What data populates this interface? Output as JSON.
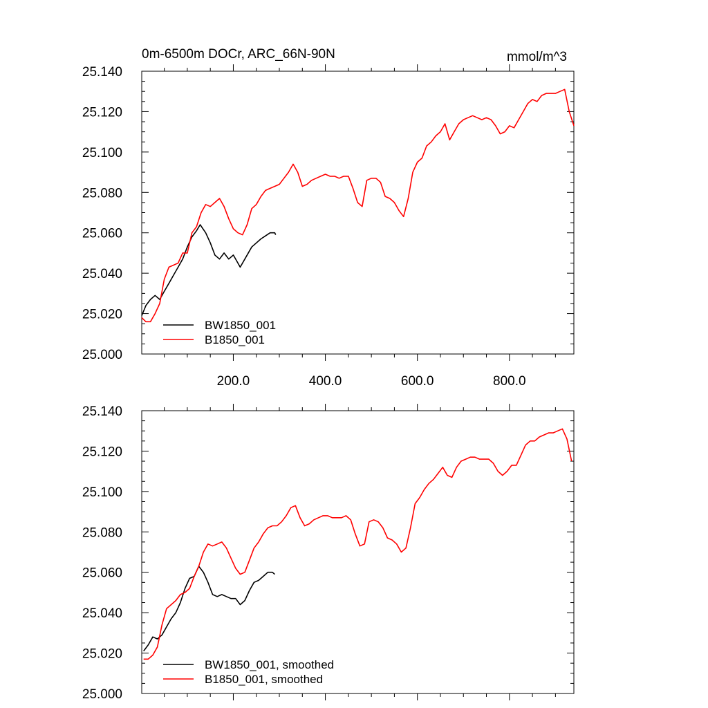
{
  "chart_data": [
    {
      "type": "line",
      "title": "0m-6500m DOCr, ARC_66N-90N",
      "units": "mmol/m^3",
      "xlim": [
        1,
        940
      ],
      "ylim": [
        25.0,
        25.14
      ],
      "x_ticks": [
        200,
        400,
        600,
        800
      ],
      "x_tick_labels": [
        "200.0",
        "400.0",
        "600.0",
        "800.0"
      ],
      "y_ticks": [
        25.0,
        25.02,
        25.04,
        25.06,
        25.08,
        25.1,
        25.12,
        25.14
      ],
      "y_tick_labels": [
        "25.000",
        "25.020",
        "25.040",
        "25.060",
        "25.080",
        "25.100",
        "25.120",
        "25.140"
      ],
      "legend_position": "bottom-left",
      "series": [
        {
          "name": "BW1850_001",
          "color": "#000000",
          "x": [
            1,
            10,
            20,
            30,
            40,
            50,
            60,
            70,
            80,
            90,
            100,
            110,
            120,
            128,
            140,
            150,
            160,
            170,
            180,
            190,
            200,
            210,
            215,
            225,
            240,
            260,
            280,
            290,
            292
          ],
          "y": [
            25.019,
            25.024,
            25.027,
            25.029,
            25.027,
            25.031,
            25.035,
            25.039,
            25.043,
            25.047,
            25.053,
            25.058,
            25.061,
            25.064,
            25.06,
            25.055,
            25.049,
            25.047,
            25.05,
            25.047,
            25.049,
            25.045,
            25.043,
            25.047,
            25.053,
            25.057,
            25.06,
            25.06,
            25.059
          ]
        },
        {
          "name": "B1850_001",
          "color": "#ff0000",
          "x": [
            1,
            10,
            20,
            30,
            40,
            50,
            60,
            70,
            80,
            90,
            100,
            110,
            120,
            130,
            140,
            150,
            160,
            170,
            180,
            190,
            200,
            210,
            220,
            230,
            240,
            250,
            260,
            270,
            280,
            290,
            300,
            310,
            320,
            330,
            340,
            350,
            360,
            370,
            380,
            390,
            400,
            410,
            420,
            430,
            440,
            450,
            460,
            470,
            480,
            490,
            500,
            510,
            520,
            530,
            540,
            550,
            560,
            570,
            580,
            590,
            600,
            610,
            620,
            630,
            640,
            650,
            660,
            670,
            680,
            690,
            700,
            710,
            720,
            730,
            740,
            750,
            760,
            770,
            780,
            790,
            800,
            810,
            820,
            830,
            840,
            850,
            860,
            870,
            880,
            890,
            900,
            910,
            920,
            930,
            940
          ],
          "y": [
            25.018,
            25.016,
            25.016,
            25.02,
            25.025,
            25.037,
            25.043,
            25.044,
            25.045,
            25.05,
            25.05,
            25.06,
            25.063,
            25.07,
            25.074,
            25.073,
            25.075,
            25.077,
            25.073,
            25.067,
            25.062,
            25.06,
            25.059,
            25.064,
            25.072,
            25.074,
            25.078,
            25.081,
            25.082,
            25.083,
            25.084,
            25.087,
            25.09,
            25.094,
            25.09,
            25.083,
            25.084,
            25.086,
            25.087,
            25.088,
            25.089,
            25.088,
            25.088,
            25.087,
            25.088,
            25.088,
            25.082,
            25.075,
            25.073,
            25.086,
            25.087,
            25.087,
            25.085,
            25.078,
            25.077,
            25.075,
            25.071,
            25.068,
            25.077,
            25.09,
            25.095,
            25.097,
            25.103,
            25.105,
            25.108,
            25.11,
            25.114,
            25.106,
            25.11,
            25.114,
            25.116,
            25.117,
            25.118,
            25.117,
            25.116,
            25.117,
            25.116,
            25.113,
            25.109,
            25.11,
            25.113,
            25.112,
            25.116,
            25.12,
            25.124,
            25.126,
            25.125,
            25.128,
            25.129,
            25.129,
            25.129,
            25.13,
            25.131,
            25.12,
            25.113
          ]
        }
      ]
    },
    {
      "type": "line",
      "xlim": [
        1,
        940
      ],
      "ylim": [
        25.0,
        25.14
      ],
      "y_ticks": [
        25.0,
        25.02,
        25.04,
        25.06,
        25.08,
        25.1,
        25.12,
        25.14
      ],
      "y_tick_labels": [
        "25.000",
        "25.020",
        "25.040",
        "25.060",
        "25.080",
        "25.100",
        "25.120",
        "25.140"
      ],
      "legend_position": "bottom-left",
      "series": [
        {
          "name": "BW1850_001, smoothed",
          "color": "#000000",
          "x": [
            5,
            15,
            25,
            35,
            45,
            55,
            65,
            75,
            85,
            95,
            105,
            115,
            125,
            135,
            145,
            155,
            165,
            175,
            185,
            195,
            205,
            215,
            225,
            235,
            245,
            255,
            265,
            275,
            285,
            290
          ],
          "y": [
            25.021,
            25.024,
            25.028,
            25.027,
            25.029,
            25.033,
            25.037,
            25.04,
            25.045,
            25.052,
            25.057,
            25.058,
            25.063,
            25.06,
            25.055,
            25.049,
            25.048,
            25.049,
            25.048,
            25.047,
            25.047,
            25.044,
            25.046,
            25.051,
            25.055,
            25.056,
            25.058,
            25.06,
            25.06,
            25.059
          ]
        },
        {
          "name": "B1850_001, smoothed",
          "color": "#ff0000",
          "x": [
            5,
            15,
            25,
            35,
            45,
            55,
            65,
            75,
            85,
            95,
            105,
            115,
            125,
            135,
            145,
            155,
            165,
            175,
            185,
            195,
            205,
            215,
            225,
            235,
            245,
            255,
            265,
            275,
            285,
            295,
            305,
            315,
            325,
            335,
            345,
            355,
            365,
            375,
            385,
            395,
            405,
            415,
            425,
            435,
            445,
            455,
            465,
            475,
            485,
            495,
            505,
            515,
            525,
            535,
            545,
            555,
            565,
            575,
            585,
            595,
            605,
            615,
            625,
            635,
            645,
            655,
            665,
            675,
            685,
            695,
            705,
            715,
            725,
            735,
            745,
            755,
            765,
            775,
            785,
            795,
            805,
            815,
            825,
            835,
            845,
            855,
            865,
            875,
            885,
            895,
            905,
            915,
            925,
            935
          ],
          "y": [
            25.017,
            25.017,
            25.019,
            25.023,
            25.034,
            25.042,
            25.044,
            25.046,
            25.049,
            25.05,
            25.052,
            25.058,
            25.063,
            25.07,
            25.074,
            25.073,
            25.074,
            25.075,
            25.072,
            25.067,
            25.062,
            25.059,
            25.06,
            25.066,
            25.072,
            25.075,
            25.079,
            25.082,
            25.083,
            25.083,
            25.085,
            25.088,
            25.092,
            25.093,
            25.087,
            25.083,
            25.084,
            25.086,
            25.087,
            25.088,
            25.088,
            25.087,
            25.087,
            25.087,
            25.088,
            25.086,
            25.079,
            25.073,
            25.074,
            25.085,
            25.086,
            25.085,
            25.082,
            25.077,
            25.076,
            25.074,
            25.07,
            25.072,
            25.082,
            25.094,
            25.097,
            25.101,
            25.104,
            25.106,
            25.109,
            25.112,
            25.108,
            25.107,
            25.112,
            25.115,
            25.116,
            25.117,
            25.117,
            25.116,
            25.116,
            25.116,
            25.114,
            25.11,
            25.108,
            25.11,
            25.113,
            25.113,
            25.118,
            25.123,
            25.125,
            25.125,
            25.127,
            25.128,
            25.129,
            25.129,
            25.13,
            25.131,
            25.126,
            25.115
          ]
        }
      ]
    }
  ]
}
